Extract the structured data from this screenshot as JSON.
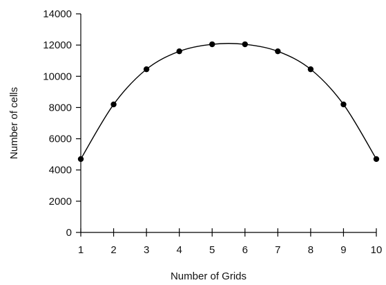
{
  "chart_data": {
    "type": "line",
    "xlabel": "Number of Grids",
    "ylabel": "Number of cells",
    "x": [
      1,
      2,
      3,
      4,
      5,
      6,
      7,
      8,
      9,
      10
    ],
    "series": [
      {
        "values": [
          4700,
          8200,
          10450,
          11600,
          12050,
          12050,
          11600,
          10450,
          8200,
          4700
        ]
      }
    ],
    "x_ticks": [
      1,
      2,
      3,
      4,
      5,
      6,
      7,
      8,
      9,
      10
    ],
    "y_ticks": [
      0,
      2000,
      4000,
      6000,
      8000,
      10000,
      12000,
      14000
    ],
    "xlim": [
      1,
      10
    ],
    "ylim": [
      0,
      14000
    ],
    "grid": false,
    "legend": "none",
    "line_color": "#000000",
    "marker_color": "#000000"
  }
}
